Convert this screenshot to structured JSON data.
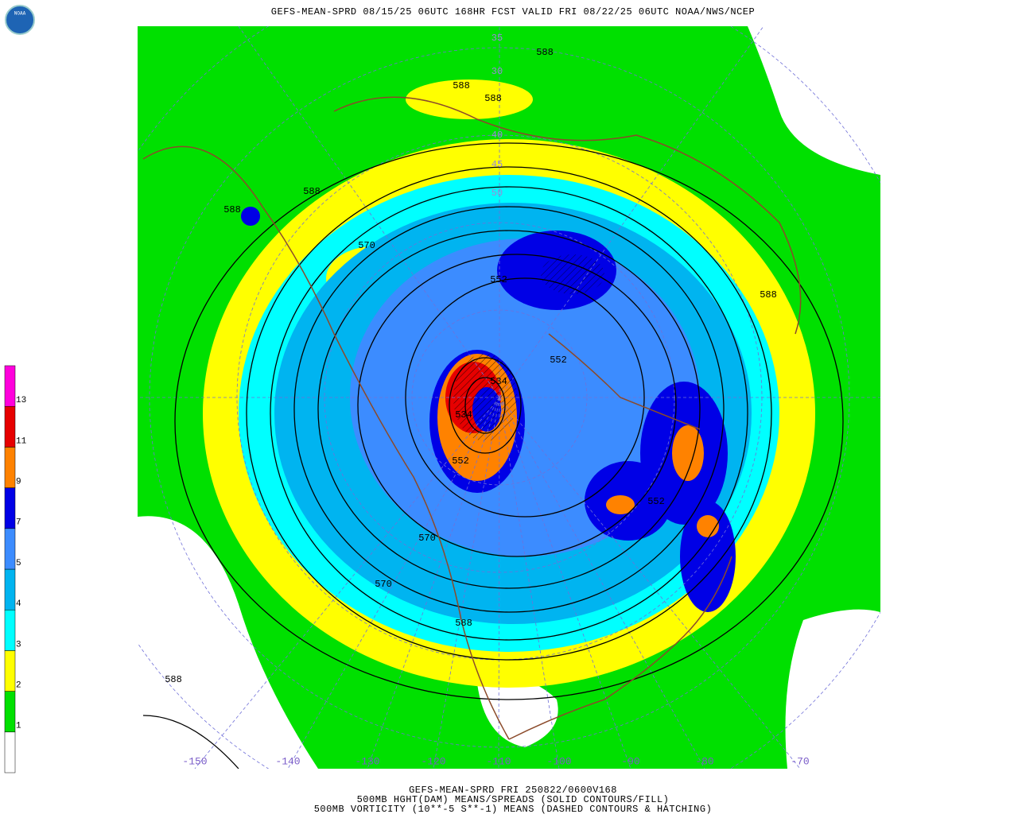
{
  "header": {
    "title": "GEFS-MEAN-SPRD 08/15/25 06UTC 168HR FCST VALID FRI 08/22/25 06UTC NOAA/NWS/NCEP",
    "logo": "NOAA"
  },
  "footer": {
    "lines": [
      "GEFS-MEAN-SPRD FRI 250822/0600V168",
      "500MB HGHT(DAM) MEANS/SPREADS (SOLID CONTOURS/FILL)",
      "500MB VORTICITY (10**-5 S**-1) MEANS (DASHED CONTOURS & HATCHING)"
    ]
  },
  "colorbar": {
    "levels": [
      1,
      2,
      3,
      4,
      5,
      7,
      9,
      11,
      13
    ],
    "colors": [
      "#ffffff",
      "#00e000",
      "#ffff00",
      "#00ffff",
      "#00b4f0",
      "#3c8cff",
      "#0000e6",
      "#ff8200",
      "#e60000",
      "#ff00dc"
    ]
  },
  "map": {
    "longitude_labels": [
      -150,
      -140,
      -130,
      -120,
      -110,
      -100,
      -90,
      -80,
      -70
    ],
    "latitude_labels": [
      35,
      30,
      40,
      45,
      50
    ],
    "contour_labels": [
      588,
      588,
      588,
      588,
      588,
      588,
      588,
      588,
      570,
      570,
      570,
      552,
      552,
      552,
      552,
      534,
      534
    ]
  }
}
